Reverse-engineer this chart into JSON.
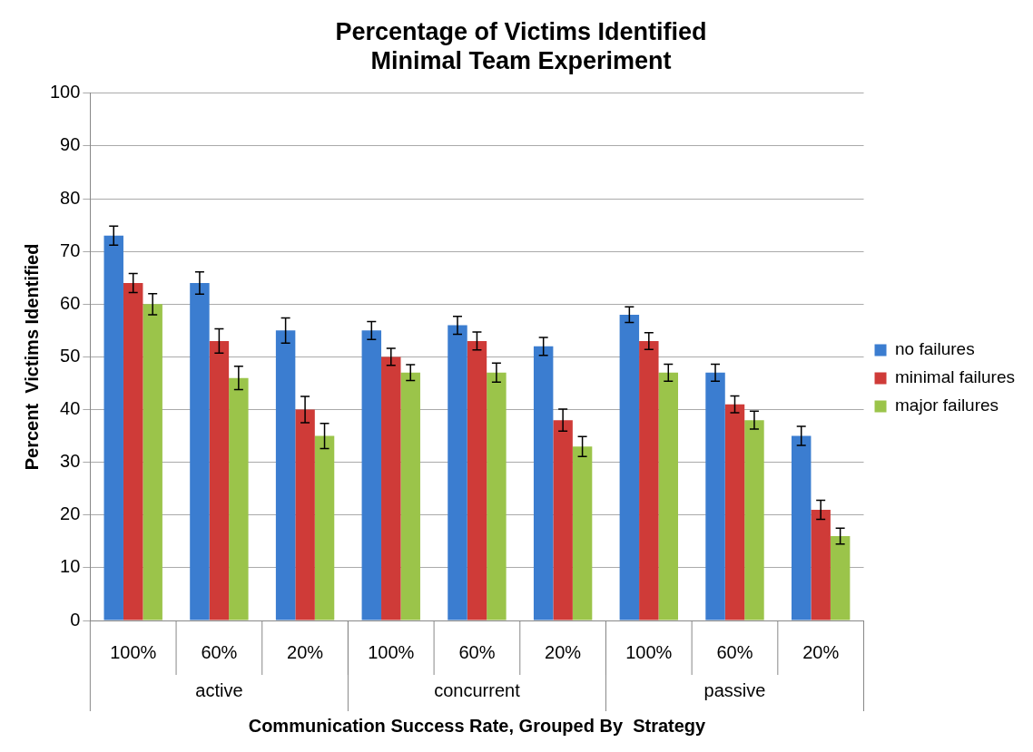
{
  "chart_data": {
    "type": "bar",
    "title": "Percentage of Victims Identified\nMinimal Team Experiment",
    "xlabel": "Communication Success Rate, Grouped By  Strategy",
    "ylabel": "Percent  Victims Identified",
    "categories": [
      "100%",
      "60%",
      "20%",
      "100%",
      "60%",
      "20%",
      "100%",
      "60%",
      "20%"
    ],
    "annotations": [
      "active",
      "concurrent",
      "passive"
    ],
    "series": [
      {
        "name": "no failures",
        "color": "#3b7dd0",
        "values": [
          73,
          64,
          55,
          55,
          56,
          52,
          58,
          47,
          35
        ],
        "errors": [
          1.8,
          2.1,
          2.4,
          1.7,
          1.7,
          1.7,
          1.5,
          1.6,
          1.8
        ]
      },
      {
        "name": "minimal failures",
        "color": "#cf3b38",
        "values": [
          64,
          53,
          40,
          50,
          53,
          38,
          53,
          41,
          21
        ],
        "errors": [
          1.8,
          2.3,
          2.5,
          1.6,
          1.7,
          2.1,
          1.6,
          1.6,
          1.8
        ]
      },
      {
        "name": "major failures",
        "color": "#9bc44a",
        "values": [
          60,
          46,
          35,
          47,
          47,
          33,
          47,
          38,
          16
        ],
        "errors": [
          2,
          2.2,
          2.4,
          1.5,
          1.8,
          1.9,
          1.6,
          1.7,
          1.5
        ]
      }
    ],
    "ylim": [
      0,
      100
    ],
    "yticks": [
      0,
      10,
      20,
      30,
      40,
      50,
      60,
      70,
      80,
      90,
      100
    ],
    "grid": "y",
    "legend": "right"
  }
}
